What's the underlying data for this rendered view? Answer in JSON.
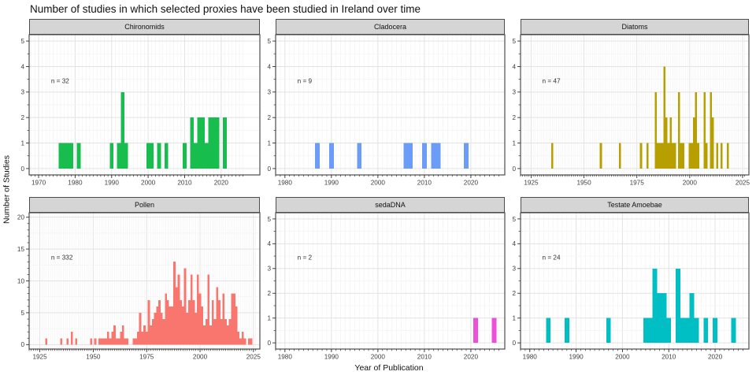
{
  "title": "Number of studies in which selected proxies have been studied in Ireland over time",
  "ylabel": "Number of Studies",
  "xlabel": "Year of Publication",
  "chart_data": {
    "type": "bar",
    "title": "Number of studies in which selected proxies have been studied in Ireland over time",
    "xlabel": "Year of Publication",
    "ylabel": "Number of Studies",
    "layout": "facet-grid 2 rows x 3 cols, free x/y scales, grid on, no legend",
    "facets": [
      {
        "id": "chironomids",
        "title": "Chironomids",
        "n": 32,
        "n_label": "n = 32",
        "color": "#17BE4E",
        "xlim": [
          1967.4,
          2030.6
        ],
        "ylim": [
          -0.25,
          5.25
        ],
        "xticks": [
          1970,
          1980,
          1990,
          2000,
          2010,
          2020
        ],
        "yticks": [
          0,
          1,
          2,
          3,
          4,
          5
        ],
        "ytick_minor_step": 0.5,
        "bars": {
          "1976": 1,
          "1977": 1,
          "1978": 1,
          "1979": 1,
          "1981": 1,
          "1990": 1,
          "1992": 1,
          "1993": 3,
          "1994": 1,
          "2000": 1,
          "2001": 1,
          "2003": 1,
          "2005": 1,
          "2010": 1,
          "2012": 2,
          "2013": 1,
          "2014": 2,
          "2015": 2,
          "2016": 1,
          "2017": 2,
          "2018": 2,
          "2019": 2,
          "2021": 2
        }
      },
      {
        "id": "cladocera",
        "title": "Cladocera",
        "n": 9,
        "n_label": "n = 9",
        "color": "#6B9DF8",
        "xlim": [
          1978,
          2027.3
        ],
        "ylim": [
          -0.25,
          5.25
        ],
        "xticks": [
          1980,
          1990,
          2000,
          2010,
          2020
        ],
        "yticks": [
          0,
          1,
          2,
          3,
          4,
          5
        ],
        "ytick_minor_step": 0.5,
        "bars": {
          "1987": 1,
          "1990": 1,
          "1996": 1,
          "2006": 1,
          "2007": 1,
          "2010": 1,
          "2012": 1,
          "2013": 1,
          "2019": 1
        }
      },
      {
        "id": "diatoms",
        "title": "Diatoms",
        "n": 47,
        "n_label": "n = 47",
        "color": "#B79F00",
        "xlim": [
          1920,
          2028
        ],
        "ylim": [
          -0.25,
          5.25
        ],
        "xticks": [
          1925,
          1950,
          1975,
          2000,
          2025
        ],
        "yticks": [
          0,
          1,
          2,
          3,
          4,
          5
        ],
        "ytick_minor_step": 0.5,
        "bars": {
          "1935": 1,
          "1958": 1,
          "1967": 1,
          "1977": 1,
          "1980": 1,
          "1984": 3,
          "1985": 1,
          "1986": 1,
          "1987": 1,
          "1988": 4,
          "1989": 2,
          "1990": 1,
          "1991": 2,
          "1992": 1,
          "1993": 1,
          "1995": 3,
          "1996": 1,
          "1997": 1,
          "2000": 1,
          "2001": 1,
          "2002": 2,
          "2003": 3,
          "2004": 1,
          "2007": 3,
          "2008": 1,
          "2010": 3,
          "2011": 2,
          "2013": 1,
          "2015": 1,
          "2018": 1
        }
      },
      {
        "id": "pollen",
        "title": "Pollen",
        "n": 332,
        "n_label": "n = 332",
        "color": "#F8766D",
        "xlim": [
          1920,
          2028
        ],
        "ylim": [
          -0.7,
          20.7
        ],
        "xticks": [
          1925,
          1950,
          1975,
          2000,
          2025
        ],
        "yticks": [
          0,
          5,
          10,
          15,
          20
        ],
        "ytick_minor_step": 1,
        "bars": {
          "1928": 1,
          "1935": 1,
          "1938": 1,
          "1940": 2,
          "1942": 1,
          "1949": 1,
          "1951": 1,
          "1953": 1,
          "1954": 1,
          "1955": 1,
          "1956": 1,
          "1957": 2,
          "1958": 1,
          "1959": 2,
          "1960": 3,
          "1961": 1,
          "1962": 1,
          "1963": 2,
          "1964": 3,
          "1965": 1,
          "1966": 1,
          "1969": 1,
          "1970": 1,
          "1971": 2,
          "1972": 5,
          "1973": 2,
          "1974": 3,
          "1975": 2,
          "1976": 7,
          "1977": 3,
          "1978": 4,
          "1979": 5,
          "1980": 6,
          "1981": 7,
          "1982": 5,
          "1983": 4,
          "1984": 8,
          "1985": 7,
          "1986": 6,
          "1987": 6,
          "1988": 13,
          "1989": 9,
          "1990": 11,
          "1991": 7,
          "1992": 6,
          "1993": 12,
          "1994": 5,
          "1995": 7,
          "1996": 11,
          "1997": 7,
          "1998": 5,
          "1999": 11,
          "2000": 8,
          "2001": 6,
          "2002": 3,
          "2003": 4,
          "2004": 11,
          "2005": 3,
          "2006": 7,
          "2007": 4,
          "2008": 9,
          "2009": 7,
          "2010": 4,
          "2011": 8,
          "2012": 4,
          "2013": 3,
          "2014": 4,
          "2015": 8,
          "2016": 8,
          "2017": 6,
          "2018": 2,
          "2019": 1,
          "2020": 2,
          "2021": 1,
          "2023": 1,
          "2024": 1
        }
      },
      {
        "id": "sedadna",
        "title": "sedaDNA",
        "n": 2,
        "n_label": "n = 2",
        "color": "#ED4FDB",
        "xlim": [
          1978,
          2027.3
        ],
        "ylim": [
          -0.25,
          5.25
        ],
        "xticks": [
          1980,
          1990,
          2000,
          2010,
          2020
        ],
        "yticks": [
          0,
          1,
          2,
          3,
          4,
          5
        ],
        "ytick_minor_step": 0.5,
        "bars": {
          "2021": 1,
          "2025": 1
        }
      },
      {
        "id": "testate-amoebae",
        "title": "Testate Amoebae",
        "n": 24,
        "n_label": "n = 24",
        "color": "#00BFC4",
        "xlim": [
          1978,
          2027.3
        ],
        "ylim": [
          -0.25,
          5.25
        ],
        "xticks": [
          1980,
          1990,
          2000,
          2010,
          2020
        ],
        "yticks": [
          0,
          1,
          2,
          3,
          4,
          5
        ],
        "ytick_minor_step": 0.5,
        "bars": {
          "1984": 1,
          "1988": 1,
          "1997": 1,
          "2005": 1,
          "2006": 1,
          "2007": 3,
          "2008": 2,
          "2009": 2,
          "2010": 1,
          "2012": 3,
          "2013": 1,
          "2014": 1,
          "2015": 2,
          "2016": 1,
          "2018": 1,
          "2020": 1,
          "2024": 1
        }
      }
    ],
    "style": {
      "strip_bg": "#d5d5d5",
      "panel_border": "#4d4d4d",
      "grid_major": "#e3e3e3",
      "grid_minor": "#f3f3f3",
      "tick_color": "#333333",
      "tick_label_color": "#404040"
    }
  }
}
